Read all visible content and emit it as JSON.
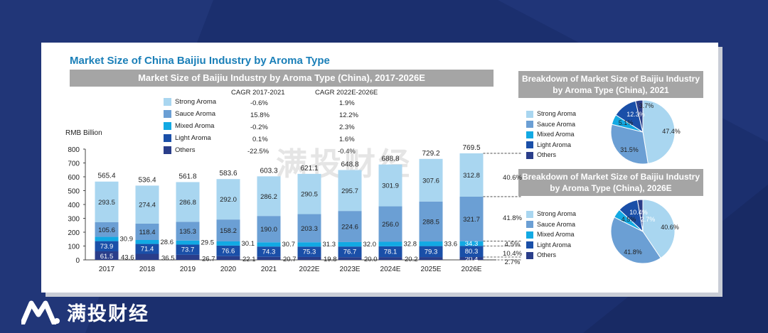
{
  "card_title": "Market Size of China Baijiu Industry by Aroma Type",
  "main_band": "Market Size of Baijiu Industry by Aroma Type (China), 2017-2026E",
  "pie1_band": "Breakdown of Market Size of Baijiu Industry by Aroma Type (China), 2021",
  "pie2_band": "Breakdown of Market Size of Baijiu Industry by Aroma Type (China), 2026E",
  "brand_name": "满投财经",
  "watermark": "满投财经",
  "colors": {
    "strong": "#a9d6f0",
    "sauce": "#6b9fd4",
    "mixed": "#12a9e3",
    "light": "#1a4fa8",
    "others": "#2a3e8a"
  },
  "cagr_headers": [
    "CAGR 2017-2021",
    "CAGR 2022E-2026E"
  ],
  "legend": [
    {
      "name": "Strong Aroma",
      "cagr1": "-0.6%",
      "cagr2": "1.9%"
    },
    {
      "name": "Sauce Aroma",
      "cagr1": "15.8%",
      "cagr2": "12.2%"
    },
    {
      "name": "Mixed Aroma",
      "cagr1": "-0.2%",
      "cagr2": "2.3%"
    },
    {
      "name": "Light Aroma",
      "cagr1": "0.1%",
      "cagr2": "1.6%"
    },
    {
      "name": "Others",
      "cagr1": "-22.5%",
      "cagr2": "-0.4%"
    }
  ],
  "chart_data": [
    {
      "type": "bar",
      "stacked": true,
      "ylabel": "RMB Billion",
      "ylim": [
        0,
        800
      ],
      "yticks": [
        0,
        100,
        200,
        300,
        400,
        500,
        600,
        700,
        800
      ],
      "categories": [
        "2017",
        "2018",
        "2019",
        "2020",
        "2021",
        "2022E",
        "2023E",
        "2024E",
        "2025E",
        "2026E"
      ],
      "totals": [
        "565.4",
        "536.4",
        "561.8",
        "583.6",
        "603.3",
        "621.1",
        "648.8",
        "688.8",
        "729.2",
        "769.5"
      ],
      "series": [
        {
          "name": "Others",
          "values": [
            61.5,
            43.6,
            36.5,
            26.7,
            22.1,
            20.7,
            19.8,
            20.0,
            20.2,
            20.4
          ]
        },
        {
          "name": "Light Aroma",
          "values": [
            73.9,
            71.4,
            73.7,
            76.6,
            74.3,
            75.3,
            76.7,
            78.1,
            79.3,
            80.3
          ]
        },
        {
          "name": "Mixed Aroma",
          "values": [
            30.9,
            28.6,
            29.5,
            30.1,
            30.7,
            31.3,
            32.0,
            32.8,
            33.6,
            34.3
          ]
        },
        {
          "name": "Sauce Aroma",
          "values": [
            105.6,
            118.4,
            135.3,
            158.2,
            190.0,
            203.3,
            224.6,
            256.0,
            288.5,
            321.7
          ]
        },
        {
          "name": "Strong Aroma",
          "values": [
            293.5,
            274.4,
            286.8,
            292.0,
            286.2,
            290.5,
            295.7,
            301.9,
            307.6,
            312.8
          ]
        }
      ],
      "share_labels_2026E": [
        "40.6%",
        "41.8%",
        "4.5%",
        "10.4%",
        "2.7%"
      ]
    },
    {
      "type": "pie",
      "title": "Breakdown of Market Size of Baijiu Industry by Aroma Type (China), 2021",
      "labels": [
        "Strong Aroma",
        "Sauce Aroma",
        "Mixed Aroma",
        "Light Aroma",
        "Others"
      ],
      "values": [
        47.4,
        31.5,
        5.1,
        12.3,
        3.7
      ],
      "value_labels": [
        "47.4%",
        "31.5%",
        "5.1%",
        "12.3%",
        "3.7%"
      ]
    },
    {
      "type": "pie",
      "title": "Breakdown of Market Size of Baijiu Industry by Aroma Type (China), 2026E",
      "labels": [
        "Strong Aroma",
        "Sauce Aroma",
        "Mixed Aroma",
        "Light Aroma",
        "Others"
      ],
      "values": [
        40.6,
        41.8,
        4.5,
        10.4,
        2.7
      ],
      "value_labels": [
        "40.6%",
        "41.8%",
        "4.5%",
        "10.4%",
        "2.7%"
      ]
    }
  ]
}
